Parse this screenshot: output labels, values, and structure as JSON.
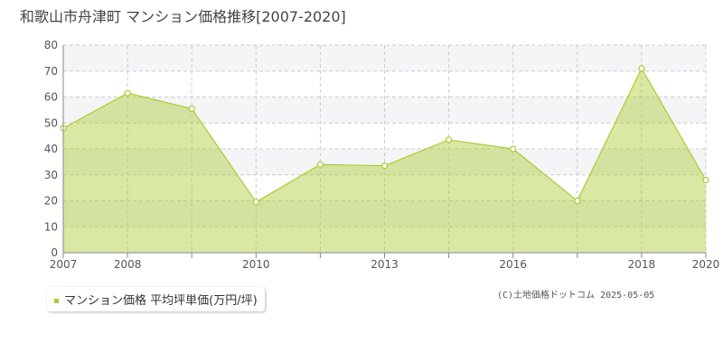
{
  "chart_data": {
    "type": "area",
    "title": "和歌山市舟津町 マンション価格推移[2007-2020]",
    "categories": [
      "2007",
      "2008",
      null,
      "2010",
      null,
      "2013",
      null,
      "2016",
      null,
      "2018",
      "2020"
    ],
    "series": [
      {
        "name": "マンション価格 平均坪単価(万円/坪)",
        "color": "#aacc33",
        "values": [
          48,
          61.5,
          55.5,
          19.5,
          34,
          33.5,
          43.5,
          40,
          20,
          71,
          28
        ]
      }
    ],
    "ylim": [
      0,
      80
    ],
    "yticks": [
      0,
      10,
      20,
      30,
      40,
      50,
      60,
      70,
      80
    ],
    "grid": true,
    "credit": "(C)土地価格ドットコム 2025-05-05"
  }
}
